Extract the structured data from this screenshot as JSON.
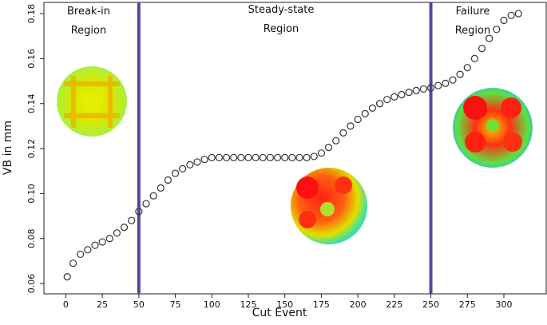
{
  "chart_data": {
    "type": "scatter",
    "x_label": "Cut Event",
    "y_label": "VB in mm",
    "x": [
      1,
      5,
      10,
      15,
      20,
      25,
      30,
      35,
      40,
      45,
      50,
      55,
      60,
      65,
      70,
      75,
      80,
      85,
      90,
      95,
      100,
      105,
      110,
      115,
      120,
      125,
      130,
      135,
      140,
      145,
      150,
      155,
      160,
      165,
      170,
      175,
      180,
      185,
      190,
      195,
      200,
      205,
      210,
      215,
      220,
      225,
      230,
      235,
      240,
      245,
      250,
      255,
      260,
      265,
      270,
      275,
      280,
      285,
      290,
      295,
      300,
      305,
      310
    ],
    "values": [
      0.063,
      0.069,
      0.073,
      0.075,
      0.077,
      0.0785,
      0.08,
      0.0825,
      0.085,
      0.088,
      0.092,
      0.0955,
      0.099,
      0.1025,
      0.106,
      0.109,
      0.111,
      0.1128,
      0.114,
      0.1152,
      0.116,
      0.116,
      0.116,
      0.116,
      0.116,
      0.116,
      0.116,
      0.116,
      0.116,
      0.116,
      0.116,
      0.116,
      0.116,
      0.116,
      0.1165,
      0.118,
      0.1205,
      0.1235,
      0.127,
      0.13,
      0.133,
      0.1355,
      0.138,
      0.14,
      0.1418,
      0.143,
      0.144,
      0.145,
      0.1458,
      0.1465,
      0.147,
      0.148,
      0.149,
      0.1505,
      0.153,
      0.156,
      0.16,
      0.1645,
      0.169,
      0.173,
      0.177,
      0.1792,
      0.18
    ],
    "color": "#333333",
    "xlim": [
      -15,
      329
    ],
    "ylim": [
      0.0554,
      0.185
    ],
    "xticks": [
      0,
      25,
      50,
      75,
      100,
      125,
      150,
      175,
      200,
      225,
      250,
      275,
      300
    ],
    "yticks": [
      0.06,
      0.08,
      {
        "value": 0.1,
        "label": "0.10"
      },
      0.12,
      0.14,
      0.16,
      0.18
    ],
    "vlines": [
      50,
      250
    ],
    "vline_color": "#4b4ba3",
    "annotations": [
      {
        "lines": [
          "Break-in",
          "Region"
        ]
      },
      {
        "lines": [
          "Steady-state",
          "Region"
        ]
      },
      {
        "lines": [
          "Failure",
          "Region"
        ]
      }
    ]
  }
}
